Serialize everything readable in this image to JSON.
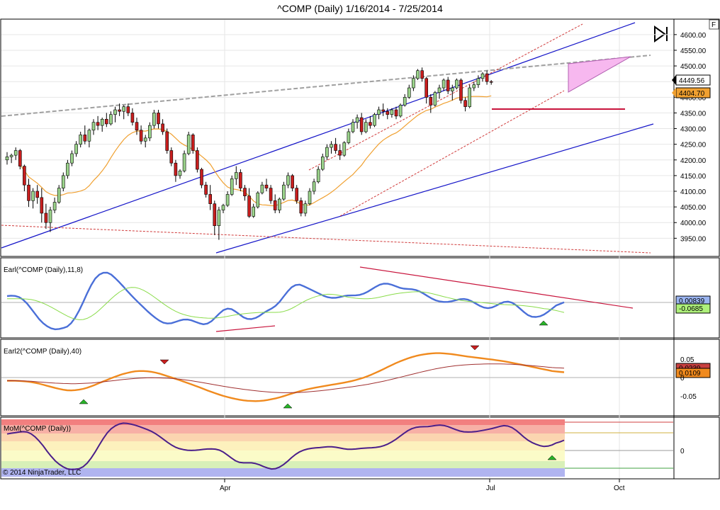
{
  "title": "^COMP (Daily)  1/16/2014 - 7/25/2014",
  "icons": {
    "f_button": "F",
    "play_end": "play-to-end-icon"
  },
  "copyright": "© 2014 NinjaTrader, LLC",
  "colors": {
    "up": "#9ad28a",
    "down": "#c81e1e",
    "sma": "#f0a030",
    "channel": "#1414c8",
    "dashed_red": "#d03a3a",
    "gray_dash": "#a0a0a0",
    "pink": "#f7b8ef",
    "earl": "#4a6fd8",
    "earl_signal": "#8adc4a",
    "earl2_fast": "#f08a1e",
    "earl2_slow": "#a03030",
    "mom": "#4b1f8a",
    "support": "#c8143c"
  },
  "chart_data": [
    {
      "id": "price",
      "type": "candlestick",
      "y_ticks": [
        "4600.00",
        "4550.00",
        "4500.00",
        "4450.00",
        "4400.00",
        "4350.00",
        "4300.00",
        "4250.00",
        "4200.00",
        "4150.00",
        "4100.00",
        "4050.00",
        "4000.00",
        "3950.00"
      ],
      "ylim": [
        3920,
        4635
      ],
      "x_labels": [
        "Apr",
        "Jul",
        "Oct"
      ],
      "last_price": "4449.56",
      "sma_value": "4404.70",
      "candles": [
        [
          4200,
          4225,
          4185,
          4210
        ],
        [
          4210,
          4220,
          4190,
          4215
        ],
        [
          4215,
          4240,
          4200,
          4230
        ],
        [
          4230,
          4235,
          4170,
          4180
        ],
        [
          4180,
          4185,
          4100,
          4120
        ],
        [
          4120,
          4140,
          4050,
          4070
        ],
        [
          4070,
          4110,
          4045,
          4100
        ],
        [
          4100,
          4120,
          4060,
          4080
        ],
        [
          4080,
          4110,
          4000,
          4030
        ],
        [
          4030,
          4060,
          3980,
          4000
        ],
        [
          4000,
          4050,
          3970,
          4040
        ],
        [
          4040,
          4080,
          4030,
          4065
        ],
        [
          4065,
          4120,
          4060,
          4110
        ],
        [
          4110,
          4160,
          4100,
          4150
        ],
        [
          4150,
          4200,
          4140,
          4190
        ],
        [
          4190,
          4230,
          4180,
          4220
        ],
        [
          4220,
          4260,
          4210,
          4250
        ],
        [
          4250,
          4290,
          4240,
          4280
        ],
        [
          4280,
          4310,
          4250,
          4260
        ],
        [
          4260,
          4300,
          4240,
          4295
        ],
        [
          4295,
          4330,
          4280,
          4320
        ],
        [
          4320,
          4340,
          4295,
          4310
        ],
        [
          4310,
          4335,
          4290,
          4330
        ],
        [
          4330,
          4350,
          4305,
          4315
        ],
        [
          4315,
          4355,
          4310,
          4345
        ],
        [
          4345,
          4370,
          4320,
          4360
        ],
        [
          4360,
          4380,
          4340,
          4355
        ],
        [
          4355,
          4375,
          4330,
          4370
        ],
        [
          4370,
          4380,
          4340,
          4350
        ],
        [
          4350,
          4365,
          4310,
          4320
        ],
        [
          4320,
          4335,
          4280,
          4295
        ],
        [
          4295,
          4310,
          4250,
          4260
        ],
        [
          4260,
          4280,
          4240,
          4270
        ],
        [
          4270,
          4320,
          4260,
          4310
        ],
        [
          4310,
          4360,
          4300,
          4350
        ],
        [
          4350,
          4360,
          4300,
          4315
        ],
        [
          4315,
          4330,
          4280,
          4290
        ],
        [
          4290,
          4300,
          4220,
          4230
        ],
        [
          4230,
          4240,
          4180,
          4190
        ],
        [
          4190,
          4200,
          4130,
          4150
        ],
        [
          4150,
          4170,
          4140,
          4165
        ],
        [
          4165,
          4230,
          4160,
          4220
        ],
        [
          4220,
          4290,
          4215,
          4280
        ],
        [
          4280,
          4285,
          4220,
          4230
        ],
        [
          4230,
          4240,
          4160,
          4170
        ],
        [
          4170,
          4175,
          4110,
          4120
        ],
        [
          4120,
          4130,
          4080,
          4090
        ],
        [
          4090,
          4120,
          4040,
          4060
        ],
        [
          4060,
          4070,
          3960,
          3990
        ],
        [
          3990,
          4050,
          3945,
          4040
        ],
        [
          4040,
          4060,
          4030,
          4055
        ],
        [
          4055,
          4100,
          4050,
          4090
        ],
        [
          4090,
          4150,
          4085,
          4140
        ],
        [
          4140,
          4180,
          4120,
          4160
        ],
        [
          4160,
          4170,
          4100,
          4110
        ],
        [
          4110,
          4120,
          4070,
          4085
        ],
        [
          4085,
          4110,
          4015,
          4020
        ],
        [
          4020,
          4060,
          4015,
          4050
        ],
        [
          4050,
          4100,
          4045,
          4095
        ],
        [
          4095,
          4130,
          4090,
          4120
        ],
        [
          4120,
          4140,
          4100,
          4110
        ],
        [
          4110,
          4120,
          4060,
          4070
        ],
        [
          4070,
          4090,
          4030,
          4040
        ],
        [
          4040,
          4080,
          4030,
          4075
        ],
        [
          4075,
          4130,
          4070,
          4120
        ],
        [
          4120,
          4160,
          4110,
          4150
        ],
        [
          4150,
          4155,
          4100,
          4110
        ],
        [
          4110,
          4120,
          4060,
          4070
        ],
        [
          4070,
          4080,
          4020,
          4030
        ],
        [
          4030,
          4070,
          4020,
          4060
        ],
        [
          4060,
          4110,
          4055,
          4100
        ],
        [
          4100,
          4140,
          4090,
          4130
        ],
        [
          4130,
          4180,
          4125,
          4170
        ],
        [
          4170,
          4220,
          4165,
          4210
        ],
        [
          4210,
          4250,
          4200,
          4240
        ],
        [
          4240,
          4260,
          4220,
          4250
        ],
        [
          4250,
          4270,
          4220,
          4230
        ],
        [
          4230,
          4250,
          4200,
          4215
        ],
        [
          4215,
          4260,
          4210,
          4255
        ],
        [
          4255,
          4300,
          4250,
          4290
        ],
        [
          4290,
          4330,
          4285,
          4320
        ],
        [
          4320,
          4345,
          4300,
          4335
        ],
        [
          4335,
          4350,
          4280,
          4290
        ],
        [
          4290,
          4330,
          4285,
          4320
        ],
        [
          4320,
          4340,
          4300,
          4310
        ],
        [
          4310,
          4350,
          4305,
          4345
        ],
        [
          4345,
          4370,
          4330,
          4360
        ],
        [
          4360,
          4380,
          4340,
          4355
        ],
        [
          4355,
          4365,
          4330,
          4345
        ],
        [
          4345,
          4365,
          4335,
          4360
        ],
        [
          4360,
          4370,
          4330,
          4340
        ],
        [
          4340,
          4380,
          4335,
          4375
        ],
        [
          4375,
          4410,
          4370,
          4400
        ],
        [
          4400,
          4440,
          4395,
          4430
        ],
        [
          4430,
          4470,
          4420,
          4460
        ],
        [
          4460,
          4490,
          4455,
          4485
        ],
        [
          4485,
          4495,
          4450,
          4460
        ],
        [
          4460,
          4465,
          4380,
          4400
        ],
        [
          4400,
          4410,
          4350,
          4375
        ],
        [
          4375,
          4420,
          4370,
          4415
        ],
        [
          4415,
          4440,
          4395,
          4430
        ],
        [
          4430,
          4460,
          4420,
          4455
        ],
        [
          4455,
          4465,
          4410,
          4420
        ],
        [
          4420,
          4440,
          4390,
          4430
        ],
        [
          4430,
          4460,
          4425,
          4455
        ],
        [
          4455,
          4460,
          4380,
          4390
        ],
        [
          4390,
          4400,
          4355,
          4370
        ],
        [
          4370,
          4440,
          4365,
          4430
        ],
        [
          4430,
          4450,
          4420,
          4440
        ],
        [
          4440,
          4470,
          4430,
          4460
        ],
        [
          4460,
          4480,
          4450,
          4475
        ],
        [
          4475,
          4485,
          4440,
          4450
        ],
        [
          4450,
          4455,
          4440,
          4449.56
        ]
      ]
    },
    {
      "id": "earl",
      "type": "line",
      "label": "Earl(^COMP (Daily),11,8)",
      "value_main": "0.00839",
      "value_signal": "-0.0685"
    },
    {
      "id": "earl2",
      "type": "line",
      "label": "Earl2(^COMP (Daily),40)",
      "y_ticks": [
        "0.05",
        "0",
        "-0.05"
      ],
      "value_fast": "0.0109",
      "value_slow": "0.0239"
    },
    {
      "id": "mom",
      "type": "line",
      "label": "MoM(^COMP (Daily))",
      "y_ticks": [
        "0"
      ]
    }
  ]
}
